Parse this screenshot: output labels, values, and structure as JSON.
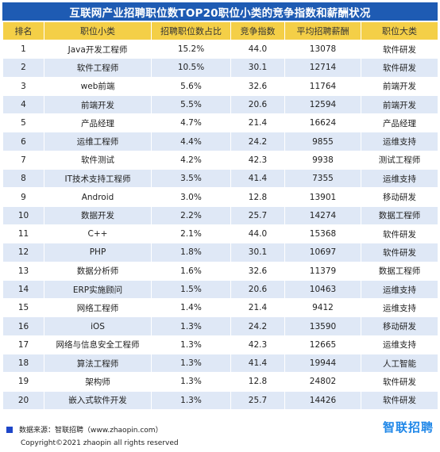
{
  "title": "互联网产业招聘职位数TOP20职位小类的竞争指数和薪酬状况",
  "headers": [
    "排名",
    "职位小类",
    "招聘职位数占比",
    "竞争指数",
    "平均招聘薪酬",
    "职位大类"
  ],
  "rows": [
    [
      "1",
      "Java开发工程师",
      "15.2%",
      "44.0",
      "13078",
      "软件研发"
    ],
    [
      "2",
      "软件工程师",
      "10.5%",
      "30.1",
      "12714",
      "软件研发"
    ],
    [
      "3",
      "web前端",
      "5.6%",
      "32.6",
      "11764",
      "前端开发"
    ],
    [
      "4",
      "前端开发",
      "5.5%",
      "20.6",
      "12594",
      "前端开发"
    ],
    [
      "5",
      "产品经理",
      "4.7%",
      "21.4",
      "16624",
      "产品经理"
    ],
    [
      "6",
      "运维工程师",
      "4.4%",
      "24.2",
      "9855",
      "运维支持"
    ],
    [
      "7",
      "软件测试",
      "4.2%",
      "42.3",
      "9938",
      "测试工程师"
    ],
    [
      "8",
      "IT技术支持工程师",
      "3.5%",
      "41.4",
      "7355",
      "运维支持"
    ],
    [
      "9",
      "Android",
      "3.0%",
      "12.8",
      "13901",
      "移动研发"
    ],
    [
      "10",
      "数据开发",
      "2.2%",
      "25.7",
      "14274",
      "数据工程师"
    ],
    [
      "11",
      "C++",
      "2.1%",
      "44.0",
      "15368",
      "软件研发"
    ],
    [
      "12",
      "PHP",
      "1.8%",
      "30.1",
      "10697",
      "软件研发"
    ],
    [
      "13",
      "数据分析师",
      "1.6%",
      "32.6",
      "11379",
      "数据工程师"
    ],
    [
      "14",
      "ERP实施顾问",
      "1.5%",
      "20.6",
      "10463",
      "运维支持"
    ],
    [
      "15",
      "网络工程师",
      "1.4%",
      "21.4",
      "9412",
      "运维支持"
    ],
    [
      "16",
      "iOS",
      "1.3%",
      "24.2",
      "13590",
      "移动研发"
    ],
    [
      "17",
      "网络与信息安全工程师",
      "1.3%",
      "42.3",
      "12665",
      "运维支持"
    ],
    [
      "18",
      "算法工程师",
      "1.3%",
      "41.4",
      "19944",
      "人工智能"
    ],
    [
      "19",
      "架构师",
      "1.3%",
      "12.8",
      "24802",
      "软件研发"
    ],
    [
      "20",
      "嵌入式软件开发",
      "1.3%",
      "25.7",
      "14426",
      "软件研发"
    ]
  ],
  "footer": {
    "source": "数据来源：智联招聘（www.zhaopin.com）",
    "copyright": "Copyright©2021 zhaopin all rights reserved",
    "logo": "智联招聘"
  },
  "colors": {
    "title_bg": "#1e5bb3",
    "header_bg": "#f4cf47",
    "stripe_bg": "#dfe8f6",
    "logo": "#1f87e8"
  }
}
